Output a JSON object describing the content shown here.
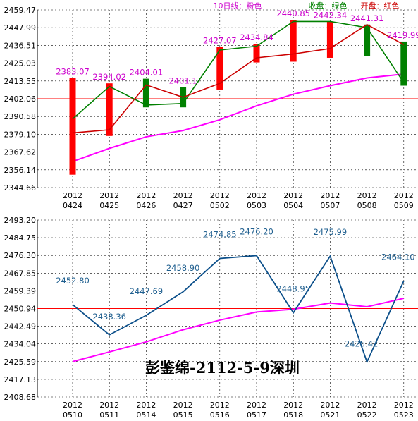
{
  "colors": {
    "candle_up": "#ff0000",
    "candle_down": "#008000",
    "close_line": "#008000",
    "open_line": "#cc0000",
    "ma_line": "#ff00ff",
    "bottom_line": "#0b4f8a",
    "ref_line": "#ff0000",
    "grid": "#000000",
    "axis_text": "#000000",
    "top_value_label": "#cc00cc",
    "bottom_value_label": "#1f5f8f",
    "legend_ma": "#cc00cc",
    "legend_close": "#008000",
    "legend_open": "#cc0000",
    "watermark": "#000000"
  },
  "watermark": "彭鉴绵-2112-5-9深圳",
  "chart_data": [
    {
      "type": "candlestick",
      "legend": [
        {
          "label": "10日线：粉色",
          "role": "ma"
        },
        {
          "label": "收盘：绿色",
          "role": "close"
        },
        {
          "label": "开盘：红色",
          "role": "open"
        }
      ],
      "y_ticks": [
        "2459.47",
        "2447.99",
        "2436.51",
        "2425.03",
        "2413.55",
        "2402.06",
        "2390.58",
        "2379.10",
        "2367.62",
        "2356.14",
        "2344.66"
      ],
      "ylim": [
        2344.66,
        2459.47
      ],
      "grid": true,
      "ref_value": 2402.06,
      "categories": [
        [
          "2012",
          "0424"
        ],
        [
          "2012",
          "0425"
        ],
        [
          "2012",
          "0426"
        ],
        [
          "2012",
          "0427"
        ],
        [
          "2012",
          "0502"
        ],
        [
          "2012",
          "0503"
        ],
        [
          "2012",
          "0504"
        ],
        [
          "2012",
          "0507"
        ],
        [
          "2012",
          "0508"
        ],
        [
          "2012",
          "0509"
        ]
      ],
      "candles": [
        {
          "open": 2380.0,
          "close": 2389.0,
          "high": 2415.5,
          "low": 2353.0,
          "up": true
        },
        {
          "open": 2382.0,
          "close": 2410.0,
          "high": 2412.0,
          "low": 2378.0,
          "up": true
        },
        {
          "open": 2411.0,
          "close": 2398.0,
          "high": 2415.0,
          "low": 2396.5,
          "up": false
        },
        {
          "open": 2403.0,
          "close": 2399.0,
          "high": 2409.5,
          "low": 2396.5,
          "up": false
        },
        {
          "open": 2412.0,
          "close": 2433.5,
          "high": 2435.5,
          "low": 2408.0,
          "up": true
        },
        {
          "open": 2428.5,
          "close": 2436.0,
          "high": 2437.5,
          "low": 2425.5,
          "up": true
        },
        {
          "open": 2431.0,
          "close": 2452.0,
          "high": 2453.0,
          "low": 2426.0,
          "up": true
        },
        {
          "open": 2434.5,
          "close": 2452.0,
          "high": 2451.5,
          "low": 2428.5,
          "up": true
        },
        {
          "open": 2450.0,
          "close": 2448.0,
          "high": 2450.0,
          "low": 2429.5,
          "up": false
        },
        {
          "open": 2437.0,
          "close": 2412.5,
          "high": 2439.0,
          "low": 2410.5,
          "up": false
        }
      ],
      "value_labels": [
        "2383.07",
        "2394.02",
        "2404.01",
        "2401.1",
        "2427.07",
        "2434.84",
        "2440.85",
        "2442.34",
        "2441.31",
        "2419.99"
      ],
      "ma": [
        2361.5,
        2370.0,
        2377.5,
        2381.5,
        2388.5,
        2397.5,
        2405.0,
        2410.5,
        2415.5,
        2418.0
      ]
    },
    {
      "type": "line",
      "y_ticks": [
        "2493.20",
        "2484.75",
        "2476.30",
        "2467.85",
        "2459.39",
        "2450.94",
        "2442.49",
        "2434.04",
        "2425.59",
        "2417.13",
        "2408.68"
      ],
      "ylim": [
        2408.68,
        2493.2
      ],
      "grid": true,
      "ref_value": 2450.94,
      "categories": [
        [
          "2012",
          "0510"
        ],
        [
          "2012",
          "0511"
        ],
        [
          "2012",
          "0514"
        ],
        [
          "2012",
          "0515"
        ],
        [
          "2012",
          "0516"
        ],
        [
          "2012",
          "0517"
        ],
        [
          "2012",
          "0518"
        ],
        [
          "2012",
          "0521"
        ],
        [
          "2012",
          "0522"
        ],
        [
          "2012",
          "0523"
        ]
      ],
      "series": [
        {
          "values": [
            2452.8,
            2438.36,
            2447.69,
            2458.9,
            2474.85,
            2476.2,
            2448.95,
            2475.99,
            2425.42,
            2464.1
          ]
        },
        {
          "values": [
            2425.6,
            2430.2,
            2435.0,
            2440.8,
            2445.4,
            2449.3,
            2450.6,
            2453.6,
            2451.8,
            2455.8
          ]
        }
      ],
      "value_labels": [
        "2452.80",
        "2438.36",
        "2447.69",
        "2458.90",
        "2474.85",
        "2476.20",
        "2448.95",
        "2475.99",
        "2425.42",
        "2464.10"
      ]
    }
  ]
}
